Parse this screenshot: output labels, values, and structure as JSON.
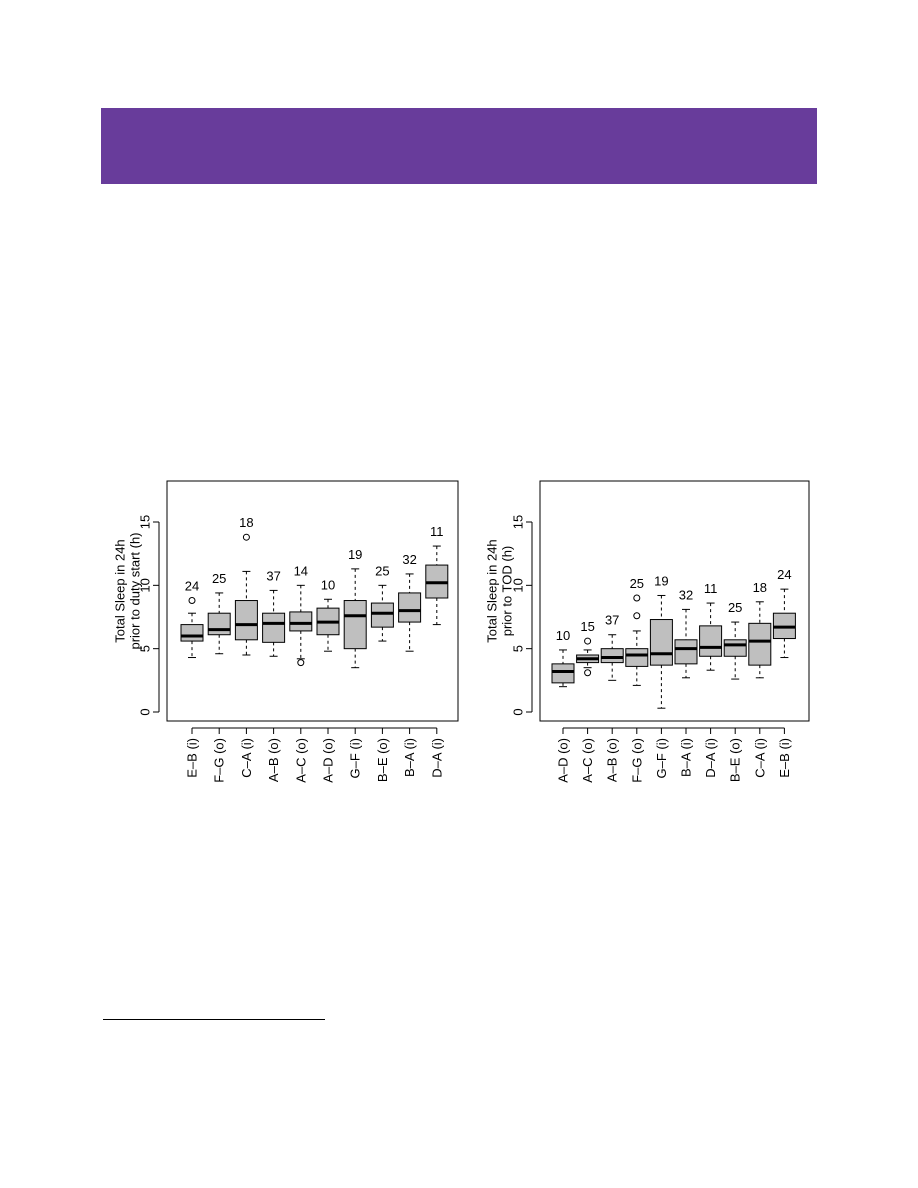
{
  "colors": {
    "banner": "#683c9b",
    "box_fill": "#bfbfbf",
    "line": "#000000"
  },
  "chart_data": [
    {
      "type": "box",
      "ylabel_lines": [
        "Total Sleep in 24h",
        "prior to duty start (h)"
      ],
      "ylim": [
        -0.5,
        18.3
      ],
      "yticks": [
        0,
        5,
        10,
        15
      ],
      "grid": false,
      "categories": [
        {
          "label": "E–B (i)",
          "count": "24",
          "min": 4.3,
          "q1": 5.6,
          "median": 6.0,
          "q3": 6.9,
          "max": 7.8,
          "outliers": [
            8.8
          ]
        },
        {
          "label": "F–G (o)",
          "count": "25",
          "min": 4.6,
          "q1": 6.1,
          "median": 6.5,
          "q3": 7.8,
          "max": 9.4,
          "outliers": []
        },
        {
          "label": "C–A (i)",
          "count": "18",
          "min": 4.5,
          "q1": 5.7,
          "median": 6.9,
          "q3": 8.8,
          "max": 11.1,
          "outliers": [
            13.8
          ]
        },
        {
          "label": "A–B (o)",
          "count": "37",
          "min": 4.4,
          "q1": 5.5,
          "median": 7.0,
          "q3": 7.8,
          "max": 9.6,
          "outliers": []
        },
        {
          "label": "A–C (o)",
          "count": "14",
          "min": 4.2,
          "q1": 6.4,
          "median": 7.0,
          "q3": 7.9,
          "max": 10.0,
          "outliers": [
            3.9
          ]
        },
        {
          "label": "A–D (o)",
          "count": "10",
          "min": 4.8,
          "q1": 6.1,
          "median": 7.1,
          "q3": 8.2,
          "max": 8.9,
          "outliers": []
        },
        {
          "label": "G–F (i)",
          "count": "19",
          "min": 3.5,
          "q1": 5.0,
          "median": 7.6,
          "q3": 8.8,
          "max": 11.3,
          "outliers": []
        },
        {
          "label": "B–E (o)",
          "count": "25",
          "min": 5.6,
          "q1": 6.7,
          "median": 7.8,
          "q3": 8.6,
          "max": 10.0,
          "outliers": []
        },
        {
          "label": "B–A (i)",
          "count": "32",
          "min": 4.8,
          "q1": 7.1,
          "median": 8.0,
          "q3": 9.4,
          "max": 10.9,
          "outliers": []
        },
        {
          "label": "D–A (i)",
          "count": "11",
          "min": 6.9,
          "q1": 9.0,
          "median": 10.2,
          "q3": 11.6,
          "max": 13.1,
          "outliers": []
        }
      ]
    },
    {
      "type": "box",
      "ylabel_lines": [
        "Total Sleep in 24h",
        "prior to TOD (h)"
      ],
      "ylim": [
        -0.5,
        18.3
      ],
      "yticks": [
        0,
        5,
        10,
        15
      ],
      "grid": false,
      "categories": [
        {
          "label": "A–D (o)",
          "count": "10",
          "min": 2.0,
          "q1": 2.3,
          "median": 3.2,
          "q3": 3.8,
          "max": 4.9,
          "outliers": []
        },
        {
          "label": "A–C (o)",
          "count": "15",
          "min": 3.5,
          "q1": 3.9,
          "median": 4.2,
          "q3": 4.5,
          "max": 4.9,
          "outliers": [
            3.1,
            5.6
          ]
        },
        {
          "label": "A–B (o)",
          "count": "37",
          "min": 2.5,
          "q1": 3.9,
          "median": 4.3,
          "q3": 5.0,
          "max": 6.1,
          "outliers": []
        },
        {
          "label": "F–G (o)",
          "count": "25",
          "min": 2.1,
          "q1": 3.6,
          "median": 4.5,
          "q3": 5.0,
          "max": 6.4,
          "outliers": [
            7.6,
            9.0
          ]
        },
        {
          "label": "G–F (i)",
          "count": "19",
          "min": 0.3,
          "q1": 3.7,
          "median": 4.6,
          "q3": 7.3,
          "max": 9.2,
          "outliers": []
        },
        {
          "label": "B–A (i)",
          "count": "32",
          "min": 2.7,
          "q1": 3.8,
          "median": 5.0,
          "q3": 5.7,
          "max": 8.1,
          "outliers": []
        },
        {
          "label": "D–A (i)",
          "count": "11",
          "min": 3.3,
          "q1": 4.4,
          "median": 5.1,
          "q3": 6.8,
          "max": 8.6,
          "outliers": []
        },
        {
          "label": "B–E (o)",
          "count": "25",
          "min": 2.6,
          "q1": 4.4,
          "median": 5.3,
          "q3": 5.7,
          "max": 7.1,
          "outliers": []
        },
        {
          "label": "C–A (i)",
          "count": "18",
          "min": 2.7,
          "q1": 3.7,
          "median": 5.6,
          "q3": 7.0,
          "max": 8.7,
          "outliers": []
        },
        {
          "label": "E–B (i)",
          "count": "24",
          "min": 4.3,
          "q1": 5.8,
          "median": 6.7,
          "q3": 7.8,
          "max": 9.7,
          "outliers": []
        }
      ]
    }
  ]
}
